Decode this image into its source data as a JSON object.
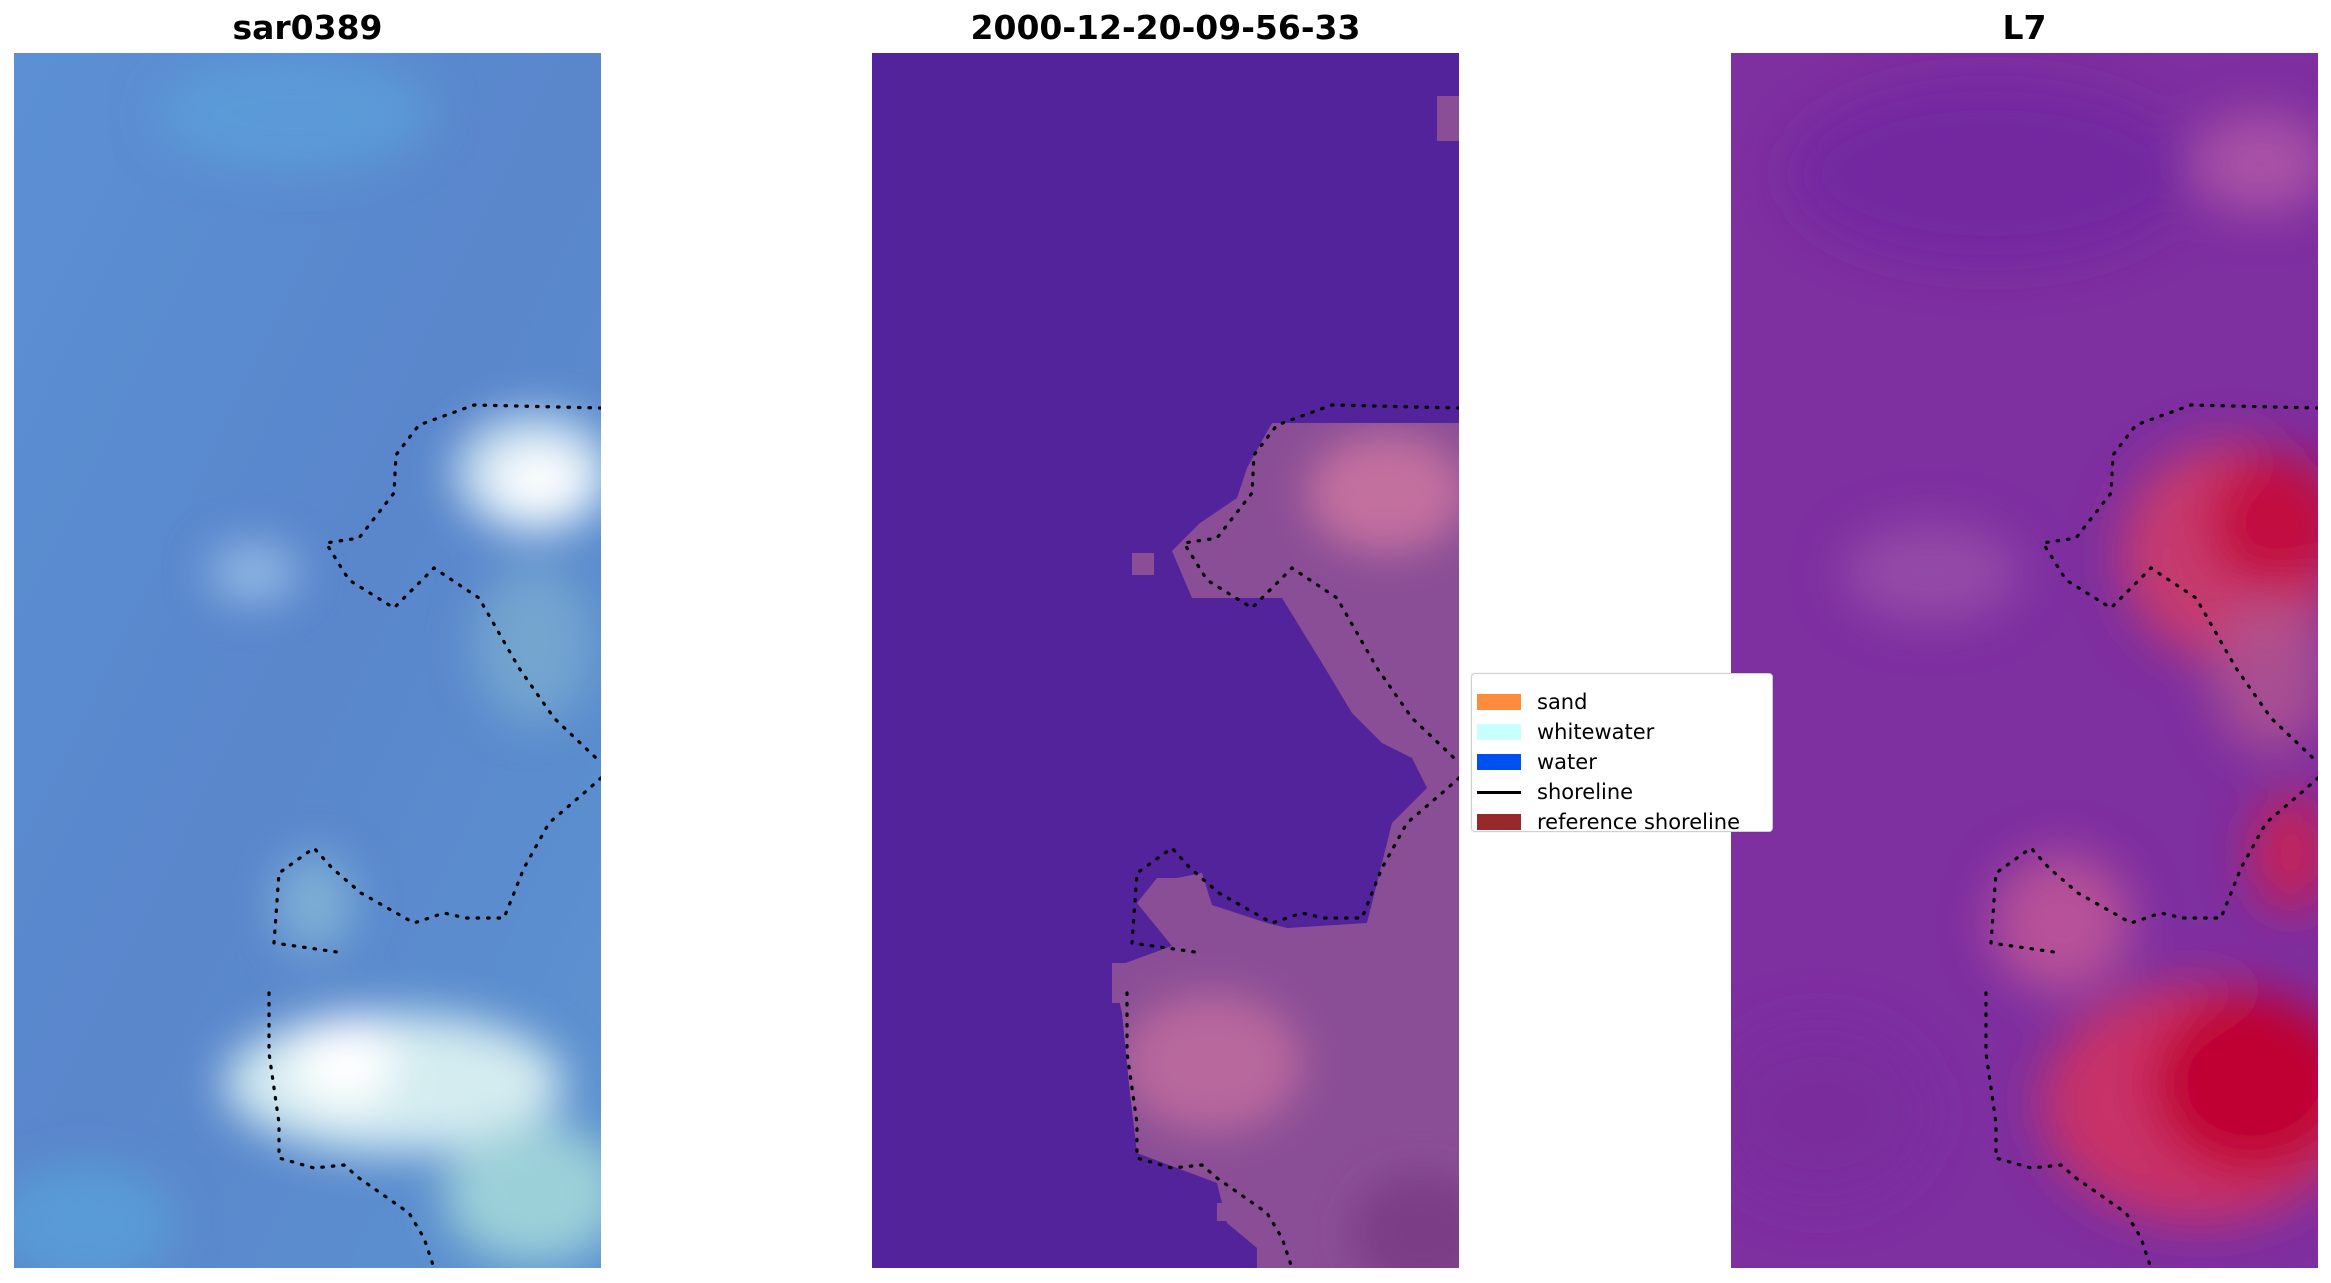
{
  "panels": [
    {
      "title": "sar0389"
    },
    {
      "title": "2000-12-20-09-56-33"
    },
    {
      "title": "L7"
    }
  ],
  "legend": [
    {
      "label": "sand",
      "color": "#ff8c3c",
      "kind": "patch"
    },
    {
      "label": "whitewater",
      "color": "#c8ffff",
      "kind": "patch"
    },
    {
      "label": "water",
      "color": "#0050f0",
      "kind": "patch"
    },
    {
      "label": "shoreline",
      "color": "#000000",
      "kind": "line"
    },
    {
      "label": "reference shoreline",
      "color": "#962a2a",
      "kind": "patch"
    }
  ],
  "colors": {
    "rgb_water": "#5a8cd2",
    "rgb_whitewater": "#eef6f8",
    "classified_water": "#52239a",
    "classified_land": "#8a4e96",
    "mndwi_low": "#7e2fa0",
    "mndwi_high": "#c4003a"
  }
}
